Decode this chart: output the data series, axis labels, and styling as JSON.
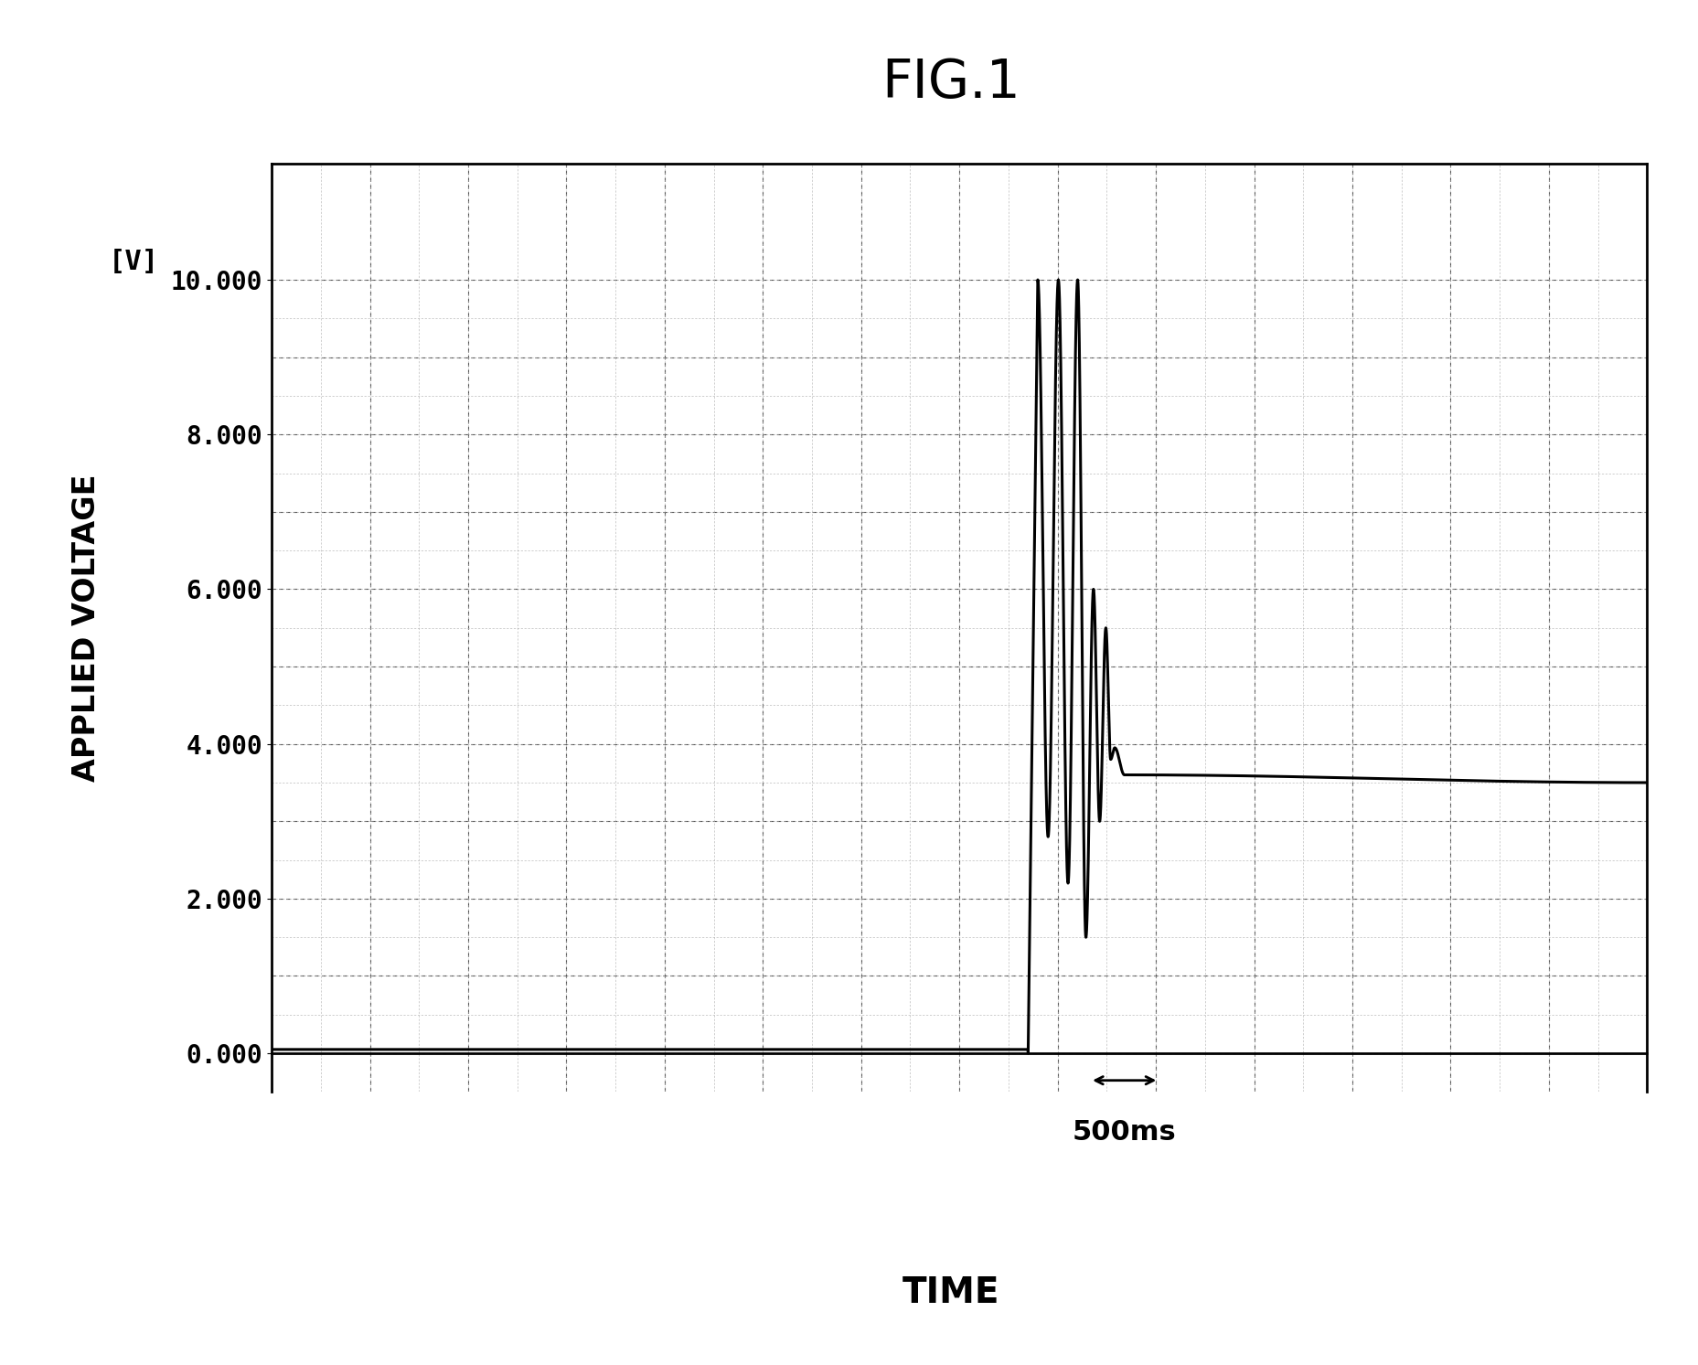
{
  "title": "FIG.1",
  "xlabel": "TIME",
  "ylabel": "APPLIED VOLTAGE",
  "ylabel_unit": "[V]",
  "yticks": [
    0.0,
    2.0,
    4.0,
    6.0,
    8.0,
    10.0
  ],
  "ytick_labels": [
    "0.000",
    "2.000",
    "4.000",
    "6.000",
    "8.000",
    "10.000"
  ],
  "background_color": "#ffffff",
  "line_color": "#000000",
  "annotation_500ms": "500ms",
  "title_fontsize": 42,
  "axis_label_fontsize": 24,
  "tick_fontsize": 20,
  "unit_fontsize": 22
}
